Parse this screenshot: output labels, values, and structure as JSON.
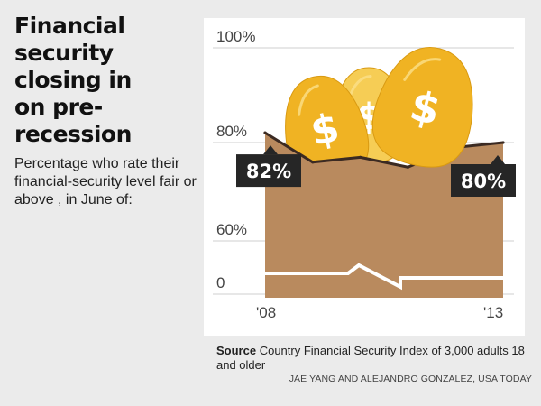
{
  "header": {
    "title_lines": [
      "Financial",
      "security",
      "closing in",
      "on pre-",
      "recession"
    ],
    "subtitle": "Percentage who rate their financial-security level fair or above , in June of:"
  },
  "chart_data": {
    "type": "area",
    "title": "Financial security closing in on pre-recession",
    "subtitle": "Percentage who rate their financial-security level fair or above , in June of:",
    "x": [
      2008,
      2009,
      2010,
      2011,
      2012,
      2013
    ],
    "series": [
      {
        "values": [
          82,
          76,
          77,
          75,
          79,
          80
        ]
      }
    ],
    "x_tick_labels": [
      "'08",
      "'13"
    ],
    "y_tick_labels": [
      "100%",
      "80%",
      "60%",
      "0"
    ],
    "y_ticks": [
      100,
      80,
      60,
      0
    ],
    "ylim": [
      0,
      100
    ],
    "axis_break": true,
    "grid": true,
    "callouts": [
      {
        "label": "82%",
        "x": 2008,
        "value": 82
      },
      {
        "label": "80%",
        "x": 2013,
        "value": 80
      }
    ],
    "colors": {
      "area": "#b98a5e",
      "line": "#3b2a22",
      "egg": "#f0b323",
      "egg_light": "#f6cd55",
      "callout": "#262626",
      "break": "#ffffff"
    },
    "decoration": {
      "egg_symbol": "$"
    }
  },
  "footer": {
    "source_label": "Source",
    "source_text": "Country Financial Security Index of 3,000 adults 18 and older",
    "credit": "JAE YANG AND ALEJANDRO GONZALEZ, USA TODAY"
  }
}
